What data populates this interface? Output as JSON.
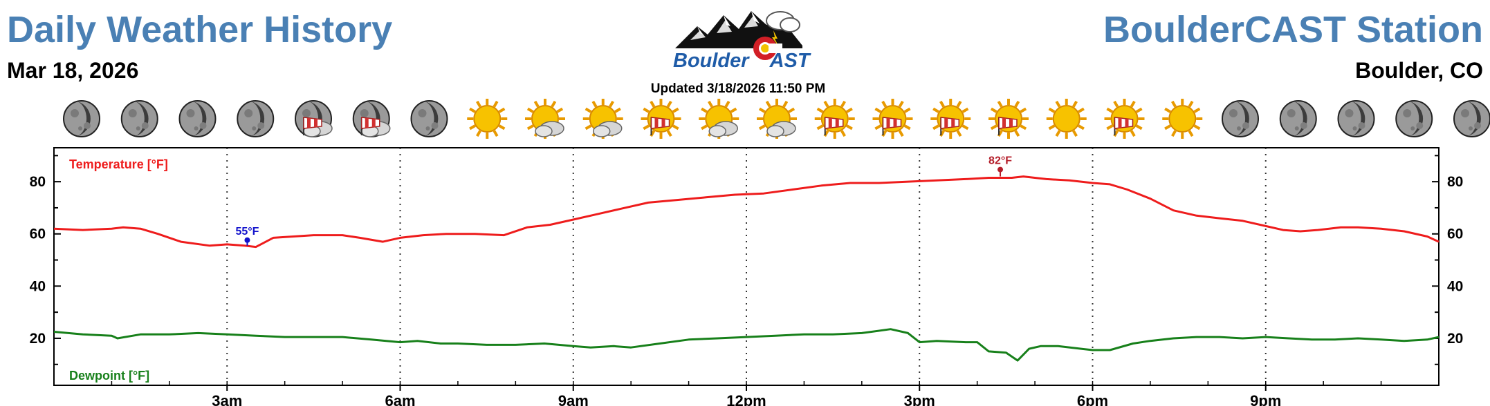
{
  "header": {
    "title_left": "Daily Weather History",
    "date": "Mar 18, 2026",
    "title_right": "BoulderCAST Station",
    "location": "Boulder, CO",
    "logo_text_1": "Boulder",
    "logo_text_2": "AST",
    "updated": "Updated 3/18/2026 11:50 PM"
  },
  "hourly_icons": [
    "moon-icon",
    "moon-icon",
    "moon-icon",
    "moon-icon",
    "moon-cloud-windsock-icon",
    "moon-cloud-windsock-icon",
    "moon-icon",
    "sun-icon",
    "sun-cloud-icon",
    "sun-cloud-icon",
    "sun-windsock-icon",
    "sun-cloud-icon",
    "sun-cloud-icon",
    "sun-windsock-icon",
    "sun-windsock-icon",
    "sun-windsock-icon",
    "sun-windsock-icon",
    "sun-icon",
    "sun-windsock-icon",
    "sun-icon",
    "moon-icon",
    "moon-icon",
    "moon-icon",
    "moon-icon",
    "moon-icon"
  ],
  "colors": {
    "title": "#4a80b4",
    "temperature": "#ee1c1c",
    "dewpoint": "#17801a",
    "min_marker": "#1212cc",
    "max_marker": "#b41e2a"
  },
  "chart_data": {
    "type": "line",
    "xlim": [
      0,
      24
    ],
    "ylim": [
      2,
      93
    ],
    "yticks": [
      20,
      40,
      60,
      80
    ],
    "xticks": [
      3,
      6,
      9,
      12,
      15,
      18,
      21
    ],
    "xtick_labels": [
      "3am",
      "6am",
      "9am",
      "12pm",
      "3pm",
      "6pm",
      "9pm"
    ],
    "grid": "dotted vertical lines at 3-hour intervals",
    "series": [
      {
        "name": "Temperature [°F]",
        "color": "#ee1c1c",
        "x": [
          0,
          0.5,
          1,
          1.2,
          1.5,
          1.8,
          2.2,
          2.7,
          3,
          3.3,
          3.5,
          3.8,
          4.5,
          5,
          5.3,
          5.7,
          6,
          6.4,
          6.8,
          7.3,
          7.8,
          8.2,
          8.6,
          9,
          9.4,
          9.8,
          10.3,
          10.8,
          11.3,
          11.8,
          12.3,
          12.8,
          13.3,
          13.8,
          14.3,
          14.8,
          15.3,
          15.8,
          16.2,
          16.6,
          16.8,
          17.2,
          17.6,
          18,
          18.3,
          18.6,
          19,
          19.4,
          19.8,
          20.2,
          20.6,
          21,
          21.3,
          21.6,
          21.9,
          22.1,
          22.3,
          22.6,
          23,
          23.4,
          23.8,
          24
        ],
        "values": [
          62,
          61.5,
          62,
          62.5,
          62,
          60,
          57,
          55.5,
          56,
          55.5,
          55,
          58.5,
          59.5,
          59.5,
          58.5,
          57,
          58.5,
          59.5,
          60,
          60,
          59.5,
          62.5,
          63.5,
          65.5,
          67.5,
          69.5,
          72,
          73,
          74,
          75,
          75.5,
          77,
          78.5,
          79.5,
          79.5,
          80,
          80.5,
          81,
          81.5,
          81.5,
          82,
          81,
          80.5,
          79.5,
          79,
          77,
          73.5,
          69,
          67,
          66,
          65,
          63,
          61.5,
          61,
          61.5,
          62,
          62.5,
          62.5,
          62,
          61,
          59,
          57
        ]
      },
      {
        "name": "Dewpoint [°F]",
        "color": "#17801a",
        "x": [
          0,
          0.5,
          1,
          1.1,
          1.5,
          2,
          2.5,
          3,
          3.5,
          4,
          4.5,
          5,
          5.5,
          6,
          6.3,
          6.7,
          7,
          7.5,
          8,
          8.5,
          9,
          9.3,
          9.7,
          10,
          10.5,
          11,
          11.5,
          12,
          12.5,
          13,
          13.5,
          14,
          14.5,
          14.8,
          15,
          15.3,
          15.8,
          16,
          16.2,
          16.5,
          16.7,
          16.9,
          17.1,
          17.4,
          17.8,
          18,
          18.3,
          18.7,
          19,
          19.4,
          19.8,
          20.2,
          20.6,
          21,
          21.4,
          21.8,
          22.2,
          22.6,
          23,
          23.4,
          23.8,
          24
        ],
        "values": [
          22.5,
          21.5,
          21,
          20,
          21.5,
          21.5,
          22,
          21.5,
          21,
          20.5,
          20.5,
          20.5,
          19.5,
          18.5,
          19,
          18,
          18,
          17.5,
          17.5,
          18,
          17,
          16.5,
          17,
          16.5,
          18,
          19.5,
          20,
          20.5,
          21,
          21.5,
          21.5,
          22,
          23.5,
          22,
          18.5,
          19,
          18.5,
          18.5,
          15,
          14.5,
          11.5,
          16,
          17,
          17,
          16,
          15.5,
          15.5,
          18,
          19,
          20,
          20.5,
          20.5,
          20,
          20.5,
          20,
          19.5,
          19.5,
          20,
          19.5,
          19,
          19.5,
          20.5
        ]
      }
    ],
    "annotations": [
      {
        "label": "55°F",
        "x": 3.35,
        "y": 55.5,
        "type": "min"
      },
      {
        "label": "82°F",
        "x": 16.4,
        "y": 82,
        "type": "max"
      }
    ]
  }
}
